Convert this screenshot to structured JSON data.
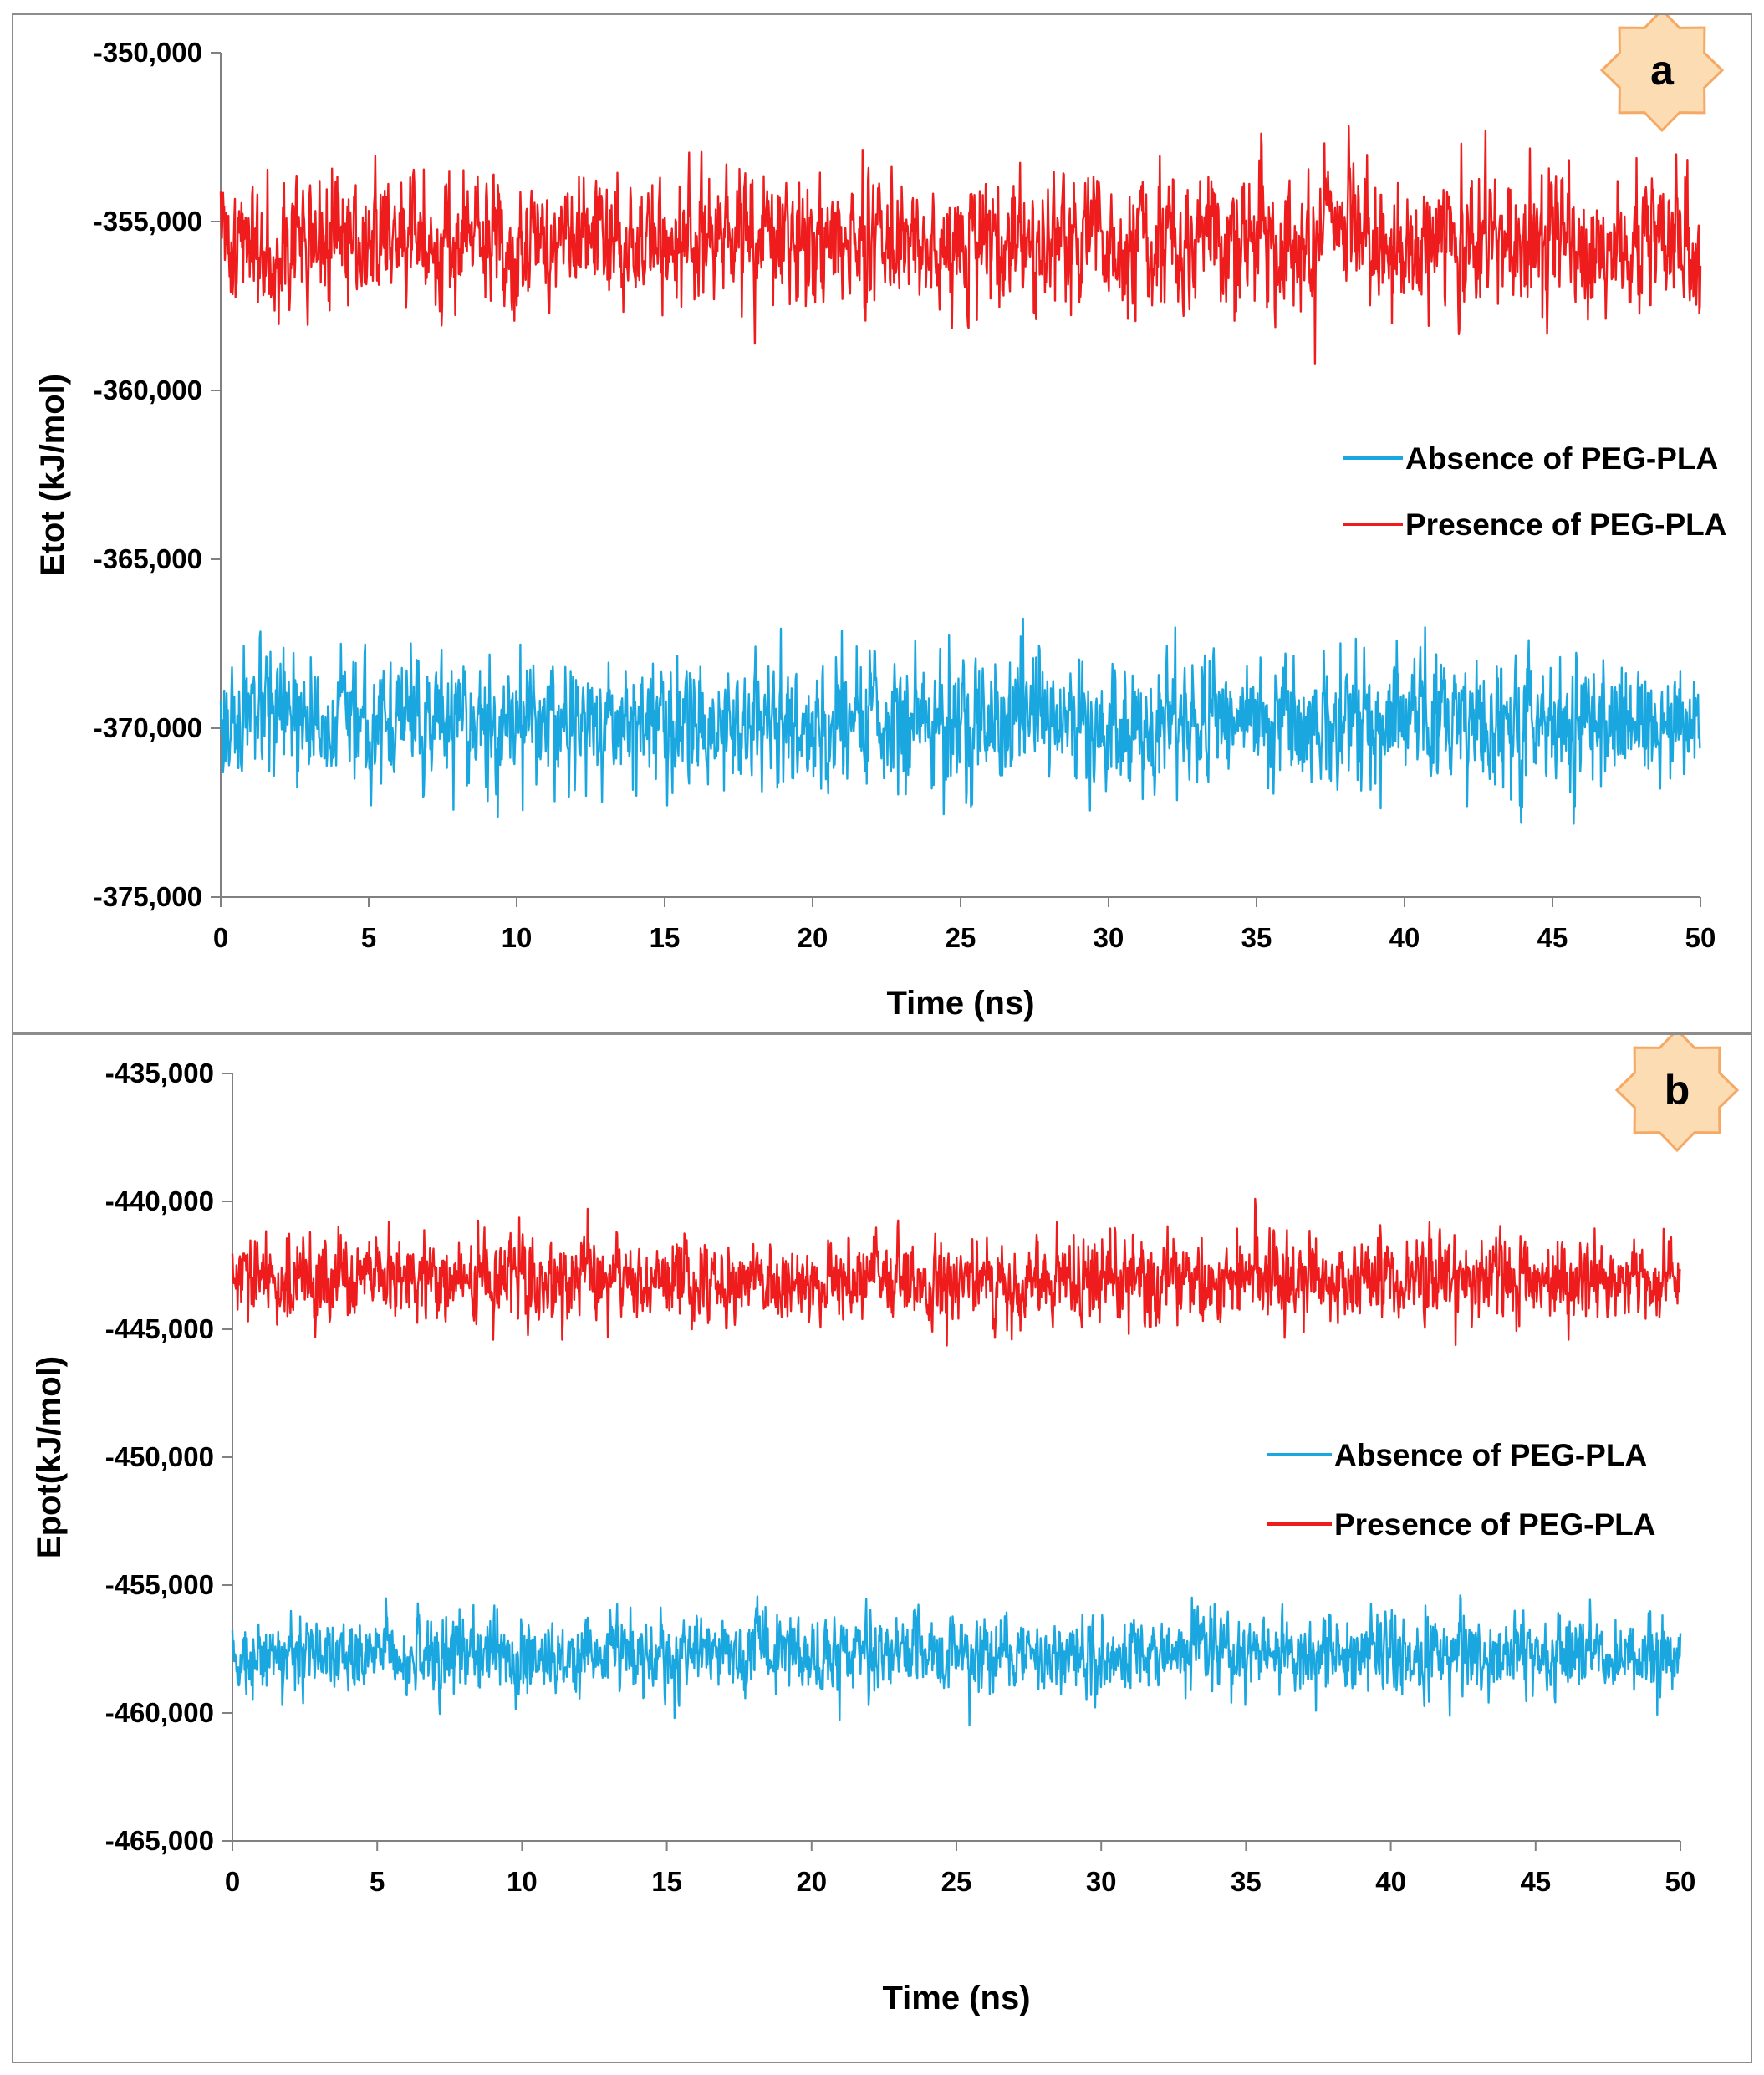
{
  "colors": {
    "absence": "#1aa7e0",
    "presence": "#ee1c1c",
    "badge_fill": "#fcdcb3",
    "badge_stroke": "#f5a965",
    "axis": "#808080"
  },
  "chart_data": [
    {
      "type": "line",
      "panel_label": "a",
      "xlabel": "Time (ns)",
      "ylabel": "Etot (kJ/mol)",
      "xlim": [
        0,
        50
      ],
      "ylim": [
        -375000,
        -350000
      ],
      "x_ticks": [
        0,
        5,
        10,
        15,
        20,
        25,
        30,
        35,
        40,
        45,
        50
      ],
      "x_tick_labels": [
        "0",
        "5",
        "10",
        "15",
        "20",
        "25",
        "30",
        "35",
        "40",
        "45",
        "50"
      ],
      "y_ticks": [
        -350000,
        -355000,
        -360000,
        -365000,
        -370000,
        -375000
      ],
      "y_tick_labels": [
        "-350,000",
        "-355,000",
        "-360,000",
        "-365,000",
        "-370,000",
        "-375,000"
      ],
      "legend_position": "right",
      "series": [
        {
          "name": "Absence of PEG-PLA",
          "color": "#1aa7e0",
          "mean": -369800,
          "noise_sd": 900,
          "min": -373100,
          "max": -366100,
          "n_points": 2500,
          "seed": 17
        },
        {
          "name": "Presence of PEG-PLA",
          "color": "#ee1c1c",
          "mean": -355600,
          "noise_sd": 950,
          "min": -359600,
          "max": -351800,
          "n_points": 2500,
          "seed": 41
        }
      ]
    },
    {
      "type": "line",
      "panel_label": "b",
      "xlabel": "Time (ns)",
      "ylabel": "Epot(kJ/mol)",
      "xlim": [
        0,
        50
      ],
      "ylim": [
        -465000,
        -435000
      ],
      "x_ticks": [
        0,
        5,
        10,
        15,
        20,
        25,
        30,
        35,
        40,
        45,
        50
      ],
      "x_tick_labels": [
        "0",
        "5",
        "10",
        "15",
        "20",
        "25",
        "30",
        "35",
        "40",
        "45",
        "50"
      ],
      "y_ticks": [
        -435000,
        -440000,
        -445000,
        -450000,
        -455000,
        -460000,
        -465000
      ],
      "y_tick_labels": [
        "-435,000",
        "-440,000",
        "-445,000",
        "-450,000",
        "-455,000",
        "-460,000",
        "-465,000"
      ],
      "legend_position": "right",
      "series": [
        {
          "name": "Absence of PEG-PLA",
          "color": "#1aa7e0",
          "mean": -457700,
          "noise_sd": 750,
          "min": -460800,
          "max": -454600,
          "n_points": 2500,
          "seed": 73
        },
        {
          "name": "Presence of PEG-PLA",
          "color": "#ee1c1c",
          "mean": -443100,
          "noise_sd": 800,
          "min": -446400,
          "max": -439800,
          "n_points": 2500,
          "seed": 29
        }
      ]
    }
  ]
}
